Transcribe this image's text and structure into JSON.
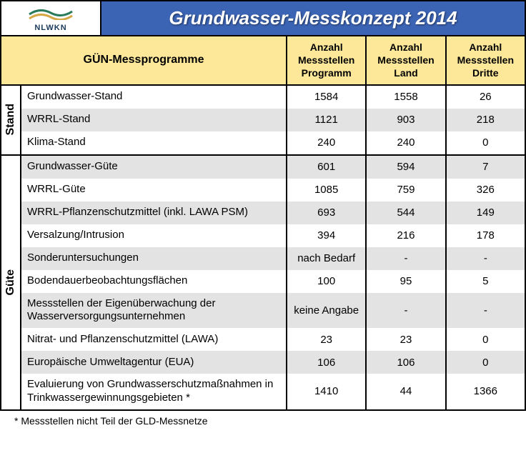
{
  "logo": {
    "brand": "NLWKN"
  },
  "title": "Grundwasser-Messkonzept 2014",
  "colHeaders": {
    "left": "GÜN-Messprogramme",
    "c1": "Anzahl Messstellen Programm",
    "c2": "Anzahl Messstellen Land",
    "c3": "Anzahl Messstellen Dritte"
  },
  "sections": [
    {
      "label": "Stand",
      "rows": [
        {
          "alt": false,
          "name": "Grundwasser-Stand",
          "v1": "1584",
          "v2": "1558",
          "v3": "26"
        },
        {
          "alt": true,
          "name": "WRRL-Stand",
          "v1": "1121",
          "v2": "903",
          "v3": "218"
        },
        {
          "alt": false,
          "name": "Klima-Stand",
          "v1": "240",
          "v2": "240",
          "v3": "0"
        }
      ]
    },
    {
      "label": "Güte",
      "rows": [
        {
          "alt": true,
          "name": "Grundwasser-Güte",
          "v1": "601",
          "v2": "594",
          "v3": "7"
        },
        {
          "alt": false,
          "name": "WRRL-Güte",
          "v1": "1085",
          "v2": "759",
          "v3": "326"
        },
        {
          "alt": true,
          "name": "WRRL-Pflanzenschutzmittel (inkl. LAWA PSM)",
          "v1": "693",
          "v2": "544",
          "v3": "149"
        },
        {
          "alt": false,
          "name": "Versalzung/Intrusion",
          "v1": "394",
          "v2": "216",
          "v3": "178"
        },
        {
          "alt": true,
          "name": "Sonderuntersuchungen",
          "v1": "nach Bedarf",
          "v2": "-",
          "v3": "-"
        },
        {
          "alt": false,
          "name": "Bodendauerbeobachtungsflächen",
          "v1": "100",
          "v2": "95",
          "v3": "5"
        },
        {
          "alt": true,
          "name": "Messstellen der Eigenüberwachung der Wasserversorgungsunternehmen",
          "v1": "keine Angabe",
          "v2": "-",
          "v3": "-"
        },
        {
          "alt": false,
          "name": "Nitrat- und Pflanzenschutzmittel (LAWA)",
          "v1": "23",
          "v2": "23",
          "v3": "0"
        },
        {
          "alt": true,
          "name": "Europäische Umweltagentur (EUA)",
          "v1": "106",
          "v2": "106",
          "v3": "0"
        },
        {
          "alt": false,
          "name": "Evaluierung von Grundwasserschutzmaßnahmen in Trinkwassergewinnungsgebieten *",
          "v1": "1410",
          "v2": "44",
          "v3": "1366"
        }
      ]
    }
  ],
  "footnote": "* Messstellen nicht Teil der GLD-Messnetze",
  "colors": {
    "headerBg": "#3c64b4",
    "colHeaderBg": "#fde89a",
    "altRow": "#e3e3e3",
    "border": "#000000"
  }
}
